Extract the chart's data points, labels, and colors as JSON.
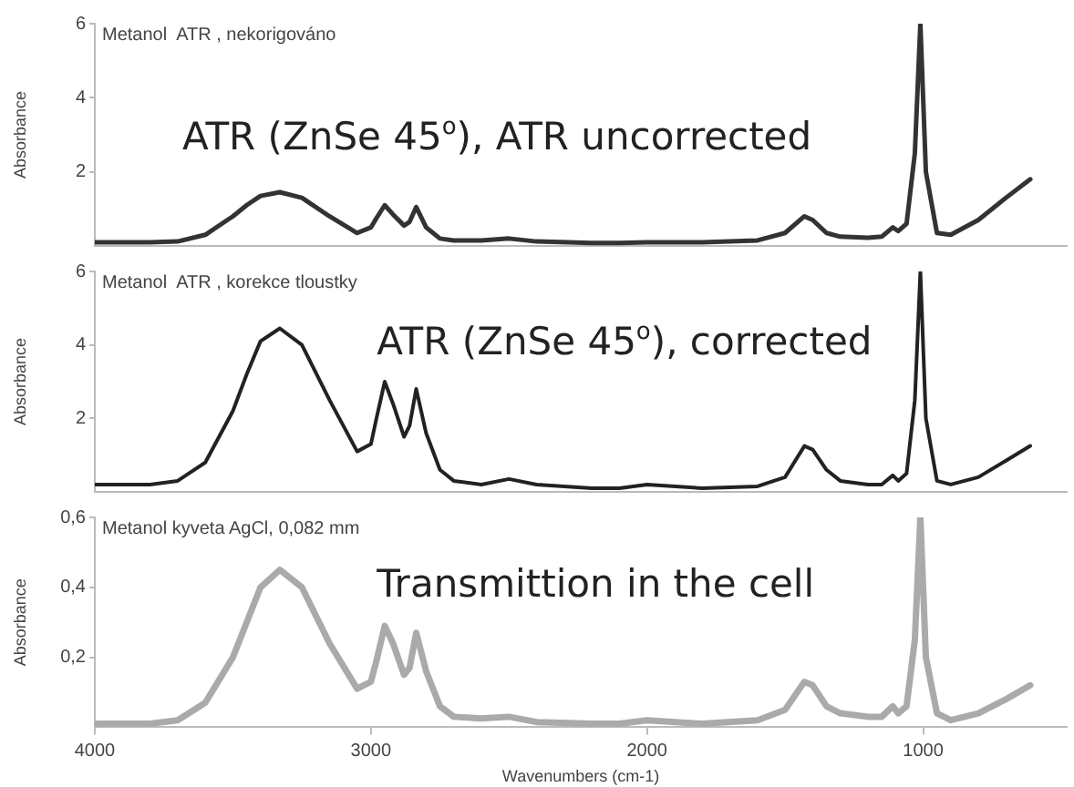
{
  "chart_data": [
    {
      "type": "line",
      "title": "Metanol  ATR , nekorigováno",
      "ylabel": "Absorbance",
      "annotations": [
        "ATR (ZnSe 45$^{o}$), ATR uncorrected"
      ],
      "xlim": [
        4000,
        480
      ],
      "xticks": [
        4000,
        3000,
        2000,
        1000
      ],
      "ylim": [
        0,
        6
      ],
      "yticks": [
        2,
        4,
        6
      ],
      "tick_labels": "y",
      "grid": false,
      "legend": false,
      "marker": "none",
      "x": [
        4000,
        3800,
        3700,
        3600,
        3500,
        3450,
        3400,
        3330,
        3250,
        3150,
        3050,
        3000,
        2980,
        2950,
        2920,
        2880,
        2860,
        2836,
        2800,
        2750,
        2700,
        2600,
        2500,
        2400,
        2200,
        2100,
        2000,
        1800,
        1600,
        1500,
        1430,
        1400,
        1350,
        1300,
        1200,
        1150,
        1110,
        1090,
        1060,
        1030,
        1010,
        990,
        950,
        900,
        800,
        700,
        612
      ],
      "series": [
        {
          "color": "#333333",
          "values": [
            0.1,
            0.1,
            0.12,
            0.3,
            0.8,
            1.1,
            1.35,
            1.45,
            1.3,
            0.8,
            0.35,
            0.5,
            0.75,
            1.1,
            0.85,
            0.55,
            0.65,
            1.05,
            0.5,
            0.2,
            0.15,
            0.15,
            0.2,
            0.12,
            0.08,
            0.08,
            0.1,
            0.1,
            0.15,
            0.35,
            0.8,
            0.7,
            0.35,
            0.25,
            0.22,
            0.25,
            0.5,
            0.4,
            0.6,
            2.5,
            6,
            2,
            0.35,
            0.3,
            0.7,
            1.3,
            1.8
          ]
        }
      ]
    },
    {
      "type": "line",
      "title": "Metanol  ATR , korekce tloustky",
      "ylabel": "Absorbance",
      "annotations": [
        "ATR (ZnSe 45$^{o}$), corrected"
      ],
      "xlim": [
        4000,
        480
      ],
      "xticks": [
        4000,
        3000,
        2000,
        1000
      ],
      "ylim": [
        0,
        6
      ],
      "yticks": [
        2,
        4,
        6
      ],
      "tick_labels": "y",
      "grid": false,
      "legend": false,
      "marker": "none",
      "x": [
        4000,
        3800,
        3700,
        3600,
        3500,
        3450,
        3400,
        3330,
        3250,
        3150,
        3050,
        3000,
        2980,
        2950,
        2920,
        2880,
        2860,
        2836,
        2800,
        2750,
        2700,
        2600,
        2500,
        2400,
        2200,
        2100,
        2000,
        1800,
        1600,
        1500,
        1430,
        1400,
        1350,
        1300,
        1200,
        1150,
        1110,
        1090,
        1060,
        1030,
        1010,
        990,
        950,
        900,
        800,
        700,
        612
      ],
      "series": [
        {
          "color": "#222222",
          "values": [
            0.2,
            0.2,
            0.3,
            0.8,
            2.2,
            3.2,
            4.1,
            4.45,
            4.0,
            2.5,
            1.1,
            1.3,
            2.0,
            3.0,
            2.4,
            1.5,
            1.8,
            2.8,
            1.6,
            0.6,
            0.3,
            0.2,
            0.35,
            0.2,
            0.1,
            0.1,
            0.2,
            0.1,
            0.15,
            0.4,
            1.25,
            1.15,
            0.6,
            0.3,
            0.2,
            0.2,
            0.45,
            0.3,
            0.5,
            2.5,
            6,
            2,
            0.3,
            0.2,
            0.4,
            0.85,
            1.25
          ]
        }
      ]
    },
    {
      "type": "line",
      "title": "Metanol kyveta AgCl, 0,082 mm",
      "xlabel": "Wavenumbers (cm-1)",
      "ylabel": "Absorbance",
      "annotations": [
        "Transmittion in the cell"
      ],
      "xlim": [
        4000,
        480
      ],
      "xticks": [
        4000,
        3000,
        2000,
        1000
      ],
      "ylim": [
        0,
        0.6
      ],
      "yticks": [
        {
          "value": 0.2,
          "label": "0,2"
        },
        {
          "value": 0.4,
          "label": "0,4"
        },
        {
          "value": 0.6,
          "label": "0,6"
        }
      ],
      "grid": false,
      "legend": false,
      "marker": "none",
      "x": [
        4000,
        3800,
        3700,
        3600,
        3500,
        3450,
        3400,
        3330,
        3250,
        3150,
        3050,
        3000,
        2980,
        2950,
        2920,
        2880,
        2860,
        2836,
        2800,
        2750,
        2700,
        2600,
        2500,
        2400,
        2200,
        2100,
        2000,
        1800,
        1600,
        1500,
        1430,
        1400,
        1350,
        1300,
        1200,
        1150,
        1110,
        1090,
        1060,
        1030,
        1010,
        990,
        950,
        900,
        800,
        700,
        612
      ],
      "series": [
        {
          "color": "#aaaaaa",
          "values": [
            0.01,
            0.01,
            0.02,
            0.07,
            0.2,
            0.3,
            0.4,
            0.45,
            0.4,
            0.24,
            0.11,
            0.13,
            0.19,
            0.29,
            0.24,
            0.15,
            0.17,
            0.27,
            0.16,
            0.06,
            0.03,
            0.025,
            0.03,
            0.015,
            0.01,
            0.01,
            0.02,
            0.01,
            0.02,
            0.05,
            0.13,
            0.12,
            0.06,
            0.04,
            0.03,
            0.03,
            0.06,
            0.04,
            0.06,
            0.25,
            0.6,
            0.2,
            0.04,
            0.02,
            0.04,
            0.08,
            0.12
          ]
        }
      ]
    }
  ]
}
